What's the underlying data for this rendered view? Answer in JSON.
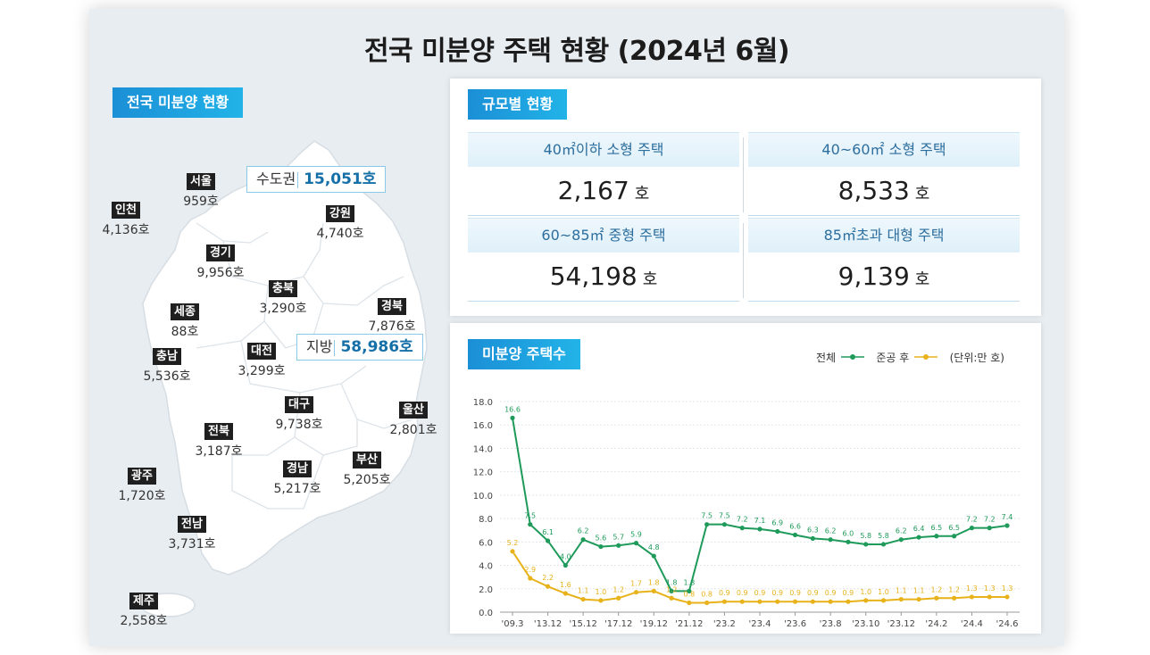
{
  "title": "전국 미분양 주택 현황  (2024년 6월)",
  "map_section": {
    "label": "전국 미분양 현황",
    "capital": {
      "label": "수도권",
      "value": "15,051호"
    },
    "local": {
      "label": "지방",
      "value": "58,986호"
    },
    "regions": [
      {
        "name": "서울",
        "value": "959호"
      },
      {
        "name": "인천",
        "value": "4,136호"
      },
      {
        "name": "강원",
        "value": "4,740호"
      },
      {
        "name": "경기",
        "value": "9,956호"
      },
      {
        "name": "충북",
        "value": "3,290호"
      },
      {
        "name": "경북",
        "value": "7,876호"
      },
      {
        "name": "세종",
        "value": "88호"
      },
      {
        "name": "충남",
        "value": "5,536호"
      },
      {
        "name": "대전",
        "value": "3,299호"
      },
      {
        "name": "대구",
        "value": "9,738호"
      },
      {
        "name": "울산",
        "value": "2,801호"
      },
      {
        "name": "전북",
        "value": "3,187호"
      },
      {
        "name": "광주",
        "value": "1,720호"
      },
      {
        "name": "경남",
        "value": "5,217호"
      },
      {
        "name": "부산",
        "value": "5,205호"
      },
      {
        "name": "전남",
        "value": "3,731호"
      },
      {
        "name": "제주",
        "value": "2,558호"
      }
    ]
  },
  "size_section": {
    "label": "규모별 현황",
    "unit": "호",
    "cells": [
      {
        "label": "40㎡이하 소형 주택",
        "value": "2,167"
      },
      {
        "label": "40~60㎡ 소형 주택",
        "value": "8,533"
      },
      {
        "label": "60~85㎡ 중형 주택",
        "value": "54,198"
      },
      {
        "label": "85㎡초과 대형 주택",
        "value": "9,139"
      }
    ]
  },
  "chart_section": {
    "label": "미분양 주택수"
  },
  "colors": {
    "total": "#1e9a5a",
    "completed": "#e8b21a",
    "accent": "#1b8fd6"
  },
  "chart_data": {
    "type": "line",
    "ylim": [
      0,
      18
    ],
    "yticks": [
      "0.0",
      "2.0",
      "4.0",
      "6.0",
      "8.0",
      "10.0",
      "12.0",
      "14.0",
      "16.0",
      "18.0"
    ],
    "x_labels": [
      "'09.3",
      "'13.12",
      "'15.12",
      "'17.12",
      "'19.12",
      "'21.12",
      "'23.2",
      "'23.4",
      "'23.6",
      "'23.8",
      "'23.10",
      "'23.12",
      "'24.2",
      "'24.4",
      "'24.6"
    ],
    "legend": [
      {
        "name": "전체",
        "color": "#1e9a5a"
      },
      {
        "name": "준공 후",
        "color": "#e8b21a"
      }
    ],
    "unit_label": "(단위:만 호)",
    "series": [
      {
        "name": "전체",
        "values": [
          16.6,
          7.5,
          6.1,
          4.0,
          6.2,
          5.6,
          5.7,
          5.9,
          4.8,
          1.8,
          1.8,
          7.5,
          7.5,
          7.2,
          7.1,
          6.9,
          6.6,
          6.3,
          6.2,
          6.0,
          5.8,
          5.8,
          6.2,
          6.4,
          6.5,
          6.5,
          7.2,
          7.2,
          7.4
        ]
      },
      {
        "name": "준공 후",
        "values": [
          5.2,
          2.9,
          2.2,
          1.6,
          1.1,
          1.0,
          1.2,
          1.7,
          1.8,
          1.2,
          0.8,
          0.8,
          0.9,
          0.9,
          0.9,
          0.9,
          0.9,
          0.9,
          0.9,
          0.9,
          1.0,
          1.0,
          1.1,
          1.1,
          1.2,
          1.2,
          1.3,
          1.3,
          1.3
        ]
      }
    ]
  }
}
